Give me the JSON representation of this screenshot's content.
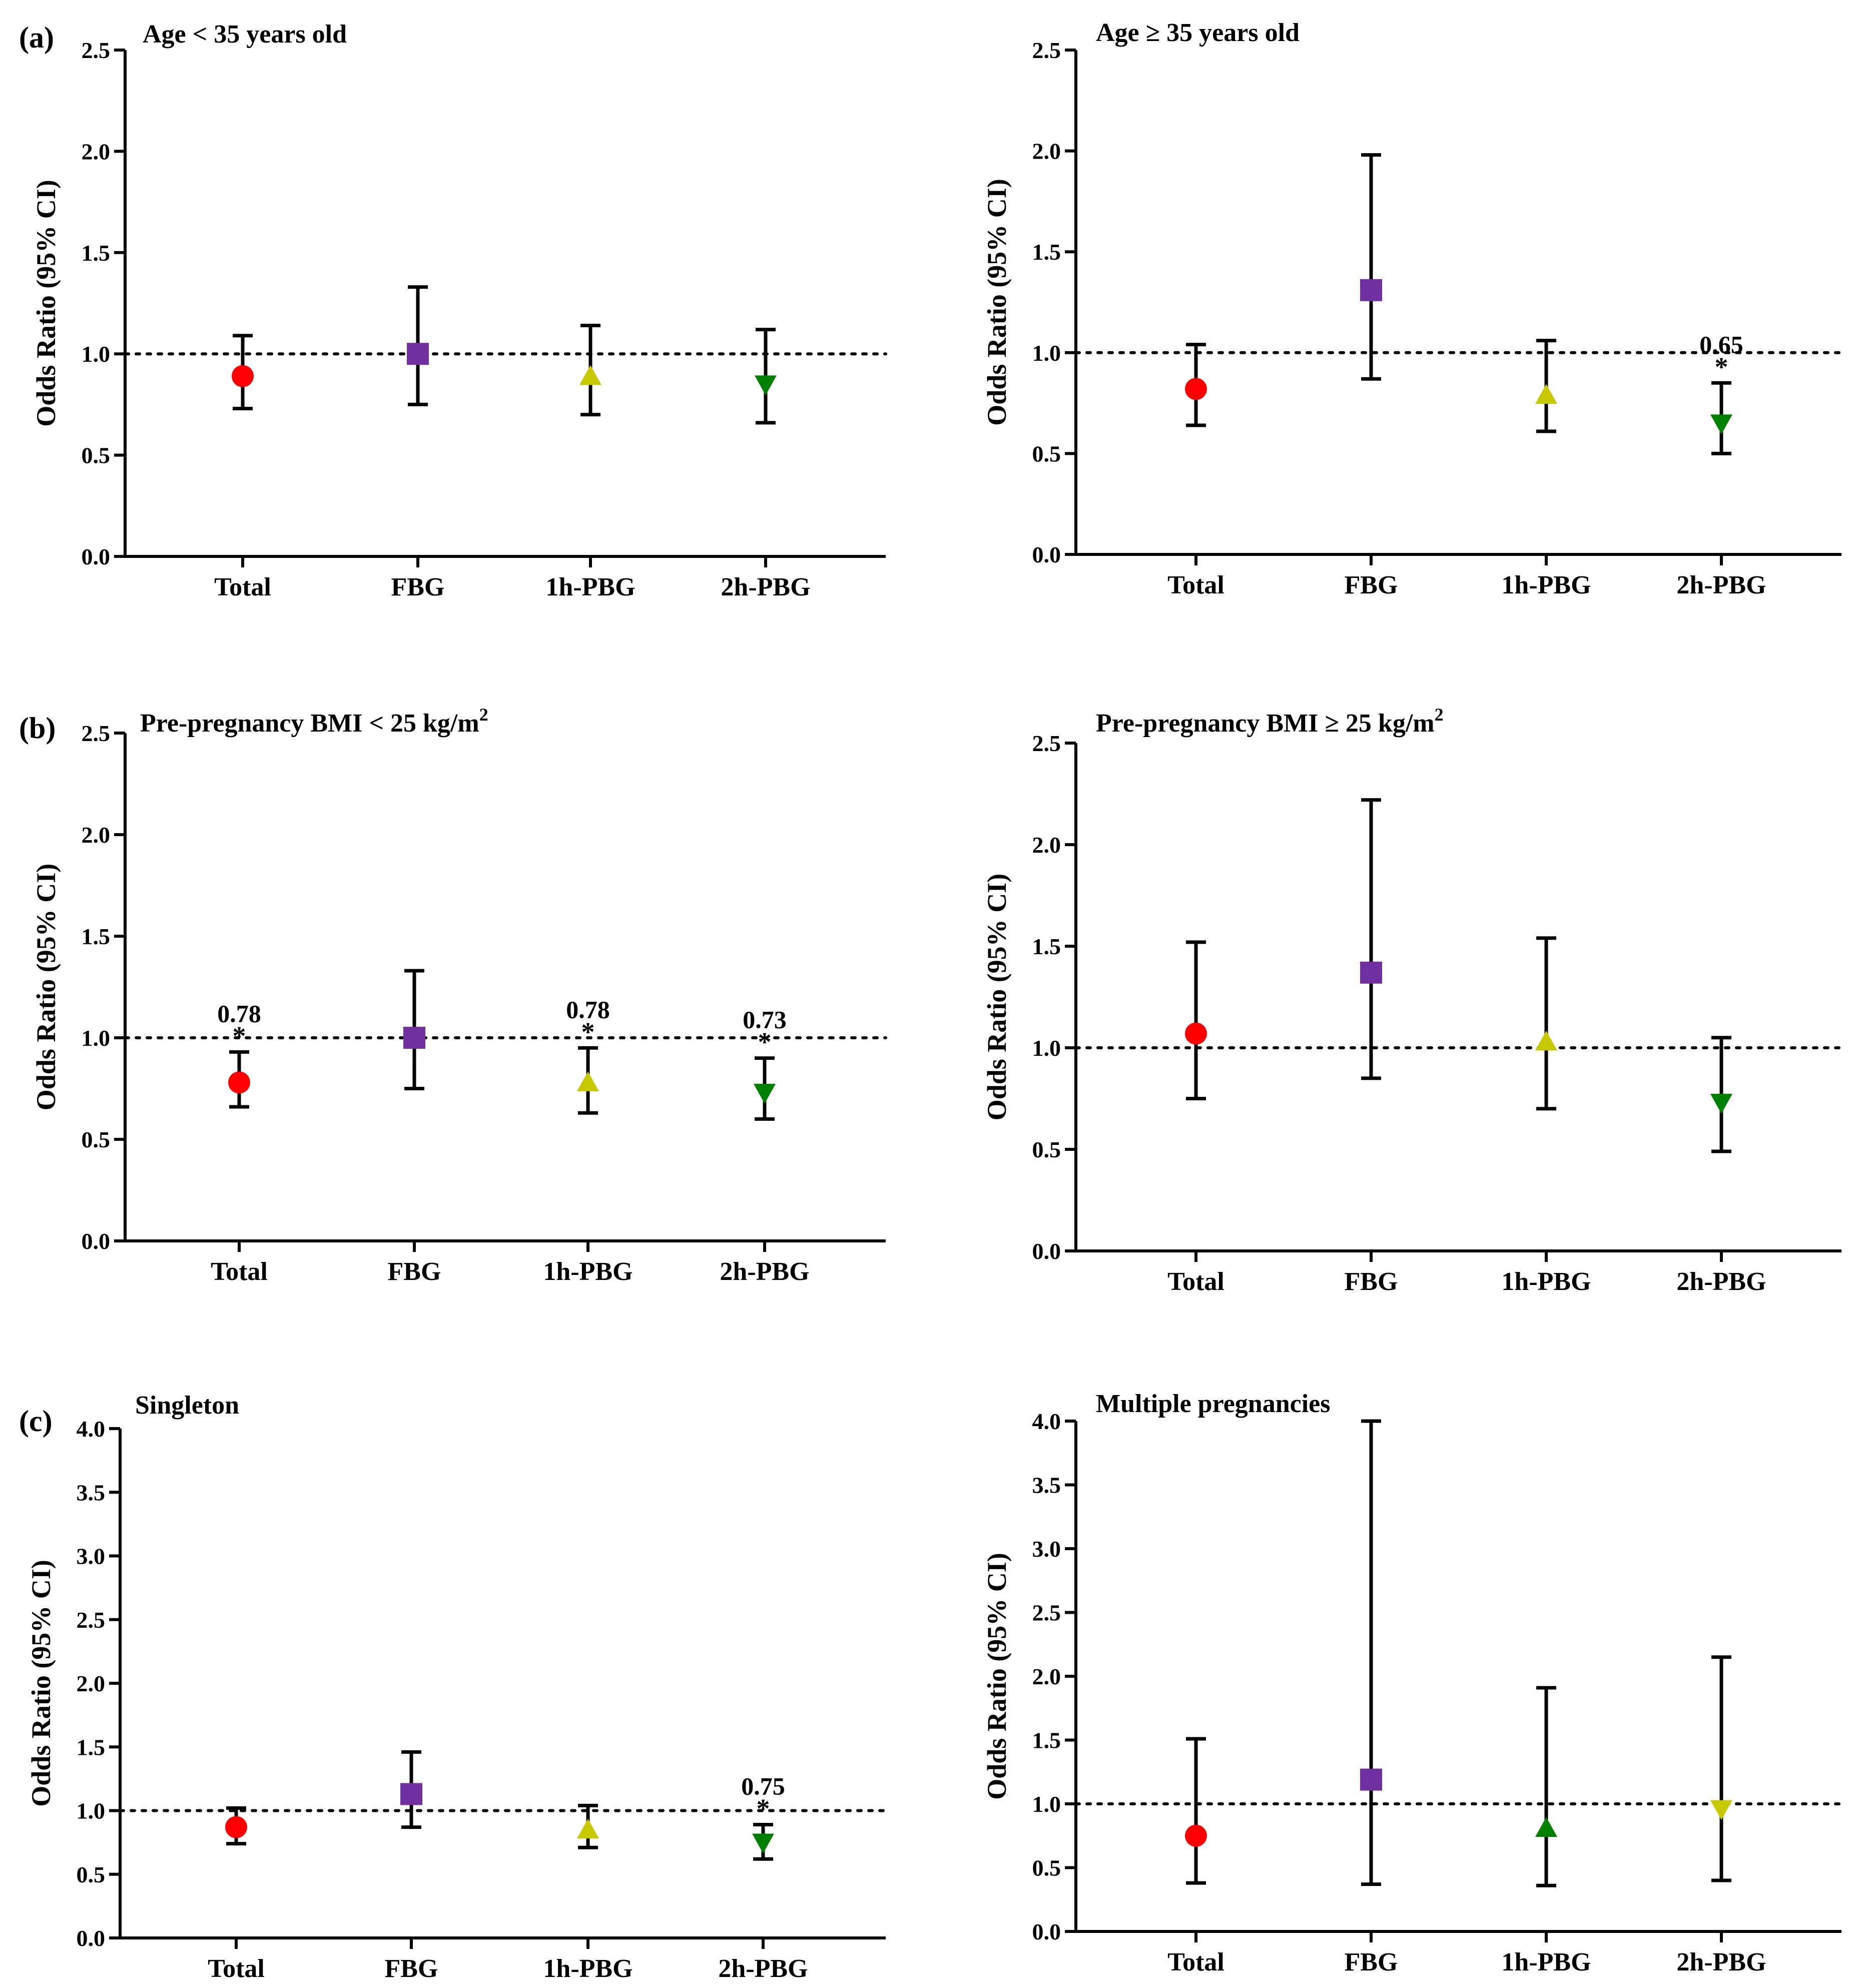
{
  "panel_labels": [
    "(a)",
    "(b)",
    "(c)"
  ],
  "chart_data": [
    {
      "type": "scatter",
      "title": "Age < 35 years old",
      "panel_label": "(a)",
      "ylabel": "Odds Ratio (95% CI)",
      "categories": [
        "Total",
        "FBG",
        "1h-PBG",
        "2h-PBG"
      ],
      "ylim": [
        0,
        2.5
      ],
      "yticks": [
        "0.0",
        "0.5",
        "1.0",
        "1.5",
        "2.0",
        "2.5"
      ],
      "reference_line": 1.0,
      "points": [
        {
          "category": "Total",
          "or": 0.89,
          "lower": 0.73,
          "upper": 1.09,
          "marker": "circle",
          "color": "#ff0000"
        },
        {
          "category": "FBG",
          "or": 1.0,
          "lower": 0.75,
          "upper": 1.33,
          "marker": "square",
          "color": "#7030a0"
        },
        {
          "category": "1h-PBG",
          "or": 0.89,
          "lower": 0.7,
          "upper": 1.14,
          "marker": "triangle-up",
          "color": "#c8c800"
        },
        {
          "category": "2h-PBG",
          "or": 0.85,
          "lower": 0.66,
          "upper": 1.12,
          "marker": "triangle-down",
          "color": "#008000"
        }
      ],
      "annotations": []
    },
    {
      "type": "scatter",
      "title": "Age ≥ 35 years old",
      "ylabel": "Odds Ratio (95% CI)",
      "categories": [
        "Total",
        "FBG",
        "1h-PBG",
        "2h-PBG"
      ],
      "ylim": [
        0,
        2.5
      ],
      "yticks": [
        "0.0",
        "0.5",
        "1.0",
        "1.5",
        "2.0",
        "2.5"
      ],
      "reference_line": 1.0,
      "points": [
        {
          "category": "Total",
          "or": 0.82,
          "lower": 0.64,
          "upper": 1.04,
          "marker": "circle",
          "color": "#ff0000"
        },
        {
          "category": "FBG",
          "or": 1.31,
          "lower": 0.87,
          "upper": 1.98,
          "marker": "square",
          "color": "#7030a0"
        },
        {
          "category": "1h-PBG",
          "or": 0.79,
          "lower": 0.61,
          "upper": 1.06,
          "marker": "triangle-up",
          "color": "#c8c800"
        },
        {
          "category": "2h-PBG",
          "or": 0.65,
          "lower": 0.5,
          "upper": 0.85,
          "marker": "triangle-down",
          "color": "#008000"
        }
      ],
      "annotations": [
        {
          "category": "2h-PBG",
          "text": "0.65",
          "star": "*"
        }
      ]
    },
    {
      "type": "scatter",
      "title": "Pre-pregnancy BMI < 25 kg/m",
      "title_sup": "2",
      "panel_label": "(b)",
      "ylabel": "Odds Ratio (95% CI)",
      "categories": [
        "Total",
        "FBG",
        "1h-PBG",
        "2h-PBG"
      ],
      "ylim": [
        0,
        2.5
      ],
      "yticks": [
        "0.0",
        "0.5",
        "1.0",
        "1.5",
        "2.0",
        "2.5"
      ],
      "reference_line": 1.0,
      "points": [
        {
          "category": "Total",
          "or": 0.78,
          "lower": 0.66,
          "upper": 0.93,
          "marker": "circle",
          "color": "#ff0000"
        },
        {
          "category": "FBG",
          "or": 1.0,
          "lower": 0.75,
          "upper": 1.33,
          "marker": "square",
          "color": "#7030a0"
        },
        {
          "category": "1h-PBG",
          "or": 0.78,
          "lower": 0.63,
          "upper": 0.95,
          "marker": "triangle-up",
          "color": "#c8c800"
        },
        {
          "category": "2h-PBG",
          "or": 0.73,
          "lower": 0.6,
          "upper": 0.9,
          "marker": "triangle-down",
          "color": "#008000"
        }
      ],
      "annotations": [
        {
          "category": "Total",
          "text": "0.78",
          "star": "*"
        },
        {
          "category": "1h-PBG",
          "text": "0.78",
          "star": "*"
        },
        {
          "category": "2h-PBG",
          "text": "0.73",
          "star": "*"
        }
      ]
    },
    {
      "type": "scatter",
      "title": "Pre-pregnancy BMI ≥ 25 kg/m",
      "title_sup": "2",
      "ylabel": "Odds Ratio (95% CI)",
      "categories": [
        "Total",
        "FBG",
        "1h-PBG",
        "2h-PBG"
      ],
      "ylim": [
        0,
        2.5
      ],
      "yticks": [
        "0.0",
        "0.5",
        "1.0",
        "1.5",
        "2.0",
        "2.5"
      ],
      "reference_line": 1.0,
      "points": [
        {
          "category": "Total",
          "or": 1.07,
          "lower": 0.75,
          "upper": 1.52,
          "marker": "circle",
          "color": "#ff0000"
        },
        {
          "category": "FBG",
          "or": 1.37,
          "lower": 0.85,
          "upper": 2.22,
          "marker": "square",
          "color": "#7030a0"
        },
        {
          "category": "1h-PBG",
          "or": 1.03,
          "lower": 0.7,
          "upper": 1.54,
          "marker": "triangle-up",
          "color": "#c8c800"
        },
        {
          "category": "2h-PBG",
          "or": 0.73,
          "lower": 0.49,
          "upper": 1.05,
          "marker": "triangle-down",
          "color": "#008000"
        }
      ],
      "annotations": []
    },
    {
      "type": "scatter",
      "title": "Singleton",
      "panel_label": "(c)",
      "ylabel": "Odds Ratio (95% CI)",
      "categories": [
        "Total",
        "FBG",
        "1h-PBG",
        "2h-PBG"
      ],
      "ylim": [
        0,
        4.0
      ],
      "yticks": [
        "0.0",
        "0.5",
        "1.0",
        "1.5",
        "2.0",
        "2.5",
        "3.0",
        "3.5",
        "4.0"
      ],
      "reference_line": 1.0,
      "points": [
        {
          "category": "Total",
          "or": 0.87,
          "lower": 0.74,
          "upper": 1.02,
          "marker": "circle",
          "color": "#ff0000"
        },
        {
          "category": "FBG",
          "or": 1.13,
          "lower": 0.87,
          "upper": 1.46,
          "marker": "square",
          "color": "#7030a0"
        },
        {
          "category": "1h-PBG",
          "or": 0.85,
          "lower": 0.71,
          "upper": 1.04,
          "marker": "triangle-up",
          "color": "#c8c800"
        },
        {
          "category": "2h-PBG",
          "or": 0.75,
          "lower": 0.62,
          "upper": 0.89,
          "marker": "triangle-down",
          "color": "#008000"
        }
      ],
      "annotations": [
        {
          "category": "2h-PBG",
          "text": "0.75",
          "star": "*"
        }
      ]
    },
    {
      "type": "scatter",
      "title": "Multiple pregnancies",
      "ylabel": "Odds Ratio (95% CI)",
      "categories": [
        "Total",
        "FBG",
        "1h-PBG",
        "2h-PBG"
      ],
      "ylim": [
        0,
        4.0
      ],
      "yticks": [
        "0.0",
        "0.5",
        "1.0",
        "1.5",
        "2.0",
        "2.5",
        "3.0",
        "3.5",
        "4.0"
      ],
      "reference_line": 1.0,
      "points": [
        {
          "category": "Total",
          "or": 0.75,
          "lower": 0.38,
          "upper": 1.51,
          "marker": "circle",
          "color": "#ff0000"
        },
        {
          "category": "FBG",
          "or": 1.19,
          "lower": 0.37,
          "upper": 4.0,
          "marker": "square",
          "color": "#7030a0"
        },
        {
          "category": "1h-PBG",
          "or": 0.81,
          "lower": 0.36,
          "upper": 1.91,
          "marker": "triangle-up",
          "color": "#008000"
        },
        {
          "category": "2h-PBG",
          "or": 0.96,
          "lower": 0.4,
          "upper": 2.15,
          "marker": "triangle-down",
          "color": "#c8c800"
        }
      ],
      "annotations": []
    }
  ]
}
